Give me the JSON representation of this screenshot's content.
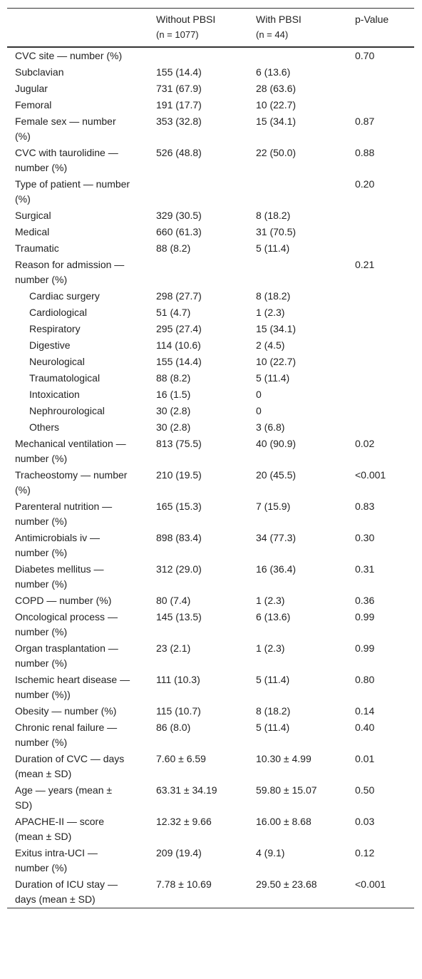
{
  "table": {
    "header": [
      {
        "title": "Without PBSI",
        "n": "(n = 1077)"
      },
      {
        "title": "With PBSI",
        "n": "(n = 44)"
      },
      {
        "title": "p-Value"
      }
    ],
    "rows": [
      {
        "label": "CVC site — number (%)",
        "without": null,
        "with": null,
        "p": "0.70"
      },
      {
        "label": "Subclavian",
        "without": "155 (14.4)",
        "with": "6 (13.6)",
        "p": null
      },
      {
        "label": "Jugular",
        "without": "731 (67.9)",
        "with": "28 (63.6)",
        "p": null
      },
      {
        "label": "Femoral",
        "without": "191 (17.7)",
        "with": "10 (22.7)",
        "p": null
      },
      {
        "label": "Female sex — number (%)",
        "without": "353 (32.8)",
        "with": "15 (34.1)",
        "p": "0.87"
      },
      {
        "label": "CVC with taurolidine — number (%)",
        "without": "526 (48.8)",
        "with": "22 (50.0)",
        "p": "0.88"
      },
      {
        "label": "Type of patient — number (%)",
        "without": null,
        "with": null,
        "p": "0.20"
      },
      {
        "label": "Surgical",
        "without": "329 (30.5)",
        "with": "8 (18.2)",
        "p": null
      },
      {
        "label": "Medical",
        "without": "660 (61.3)",
        "with": "31 (70.5)",
        "p": null
      },
      {
        "label": "Traumatic",
        "without": "88 (8.2)",
        "with": "5 (11.4)",
        "p": null
      },
      {
        "label": "Reason for admission — number (%)",
        "without": null,
        "with": null,
        "p": "0.21",
        "subrows": [
          {
            "label": "Cardiac surgery",
            "without": "298 (27.7)",
            "with": "8 (18.2)",
            "p": null
          },
          {
            "label": "Cardiological",
            "without": "51 (4.7)",
            "with": "1 (2.3)",
            "p": null
          },
          {
            "label": "Respiratory",
            "without": "295 (27.4)",
            "with": "15 (34.1)",
            "p": null
          },
          {
            "label": "Digestive",
            "without": "114 (10.6)",
            "with": "2 (4.5)",
            "p": null
          },
          {
            "label": "Neurological",
            "without": "155 (14.4)",
            "with": "10 (22.7)",
            "p": null
          },
          {
            "label": "Traumatological",
            "without": "88 (8.2)",
            "with": "5 (11.4)",
            "p": null
          },
          {
            "label": "Intoxication",
            "without": "16 (1.5)",
            "with": "0",
            "p": null
          },
          {
            "label": "Nephrourological",
            "without": "30 (2.8)",
            "with": "0",
            "p": null
          },
          {
            "label": "Others",
            "without": "30 (2.8)",
            "with": "3 (6.8)",
            "p": null
          }
        ]
      },
      {
        "label": "Mechanical ventilation — number (%)",
        "without": "813 (75.5)",
        "with": "40 (90.9)",
        "p": "0.02"
      },
      {
        "label": "Tracheostomy — number (%)",
        "without": "210 (19.5)",
        "with": "20 (45.5)",
        "p": "<0.001"
      },
      {
        "label": "Parenteral nutrition — number (%)",
        "without": "165 (15.3)",
        "with": "7 (15.9)",
        "p": "0.83"
      },
      {
        "label": "Antimicrobials iv — number (%)",
        "without": "898 (83.4)",
        "with": "34 (77.3)",
        "p": "0.30"
      },
      {
        "label": "Diabetes mellitus — number (%)",
        "without": "312 (29.0)",
        "with": "16 (36.4)",
        "p": "0.31"
      },
      {
        "label": "COPD — number (%)",
        "without": "80 (7.4)",
        "with": "1 (2.3)",
        "p": "0.36"
      },
      {
        "label": "Oncological process — number (%)",
        "without": "145 (13.5)",
        "with": "6 (13.6)",
        "p": "0.99"
      },
      {
        "label": "Organ trasplantation — number (%)",
        "without": "23 (2.1)",
        "with": "1 (2.3)",
        "p": "0.99"
      },
      {
        "label": "Ischemic heart disease — number (%))",
        "without": "111 (10.3)",
        "with": "5 (11.4)",
        "p": "0.80"
      },
      {
        "label": "Obesity — number (%)",
        "without": "115 (10.7)",
        "with": "8 (18.2)",
        "p": "0.14"
      },
      {
        "label": "Chronic renal failure — number (%)",
        "without": "86 (8.0)",
        "with": "5 (11.4)",
        "p": "0.40"
      },
      {
        "label": "Duration of CVC — days (mean ± SD)",
        "without": "7.60 ± 6.59",
        "with": "10.30 ± 4.99",
        "p": "0.01"
      },
      {
        "label": "Age — years (mean ± SD)",
        "without": "63.31 ± 34.19",
        "with": "59.80 ± 15.07",
        "p": "0.50"
      },
      {
        "label": "APACHE-II — score (mean ± SD)",
        "without": "12.32 ± 9.66",
        "with": "16.00 ± 8.68",
        "p": "0.03"
      },
      {
        "label": "Exitus intra-UCI — number (%)",
        "without": "209 (19.4)",
        "with": "4 (9.1)",
        "p": "0.12"
      },
      {
        "label": "Duration of ICU stay — days (mean ± SD)",
        "without": "7.78 ± 10.69",
        "with": "29.50 ± 23.68",
        "p": "<0.001"
      }
    ]
  }
}
